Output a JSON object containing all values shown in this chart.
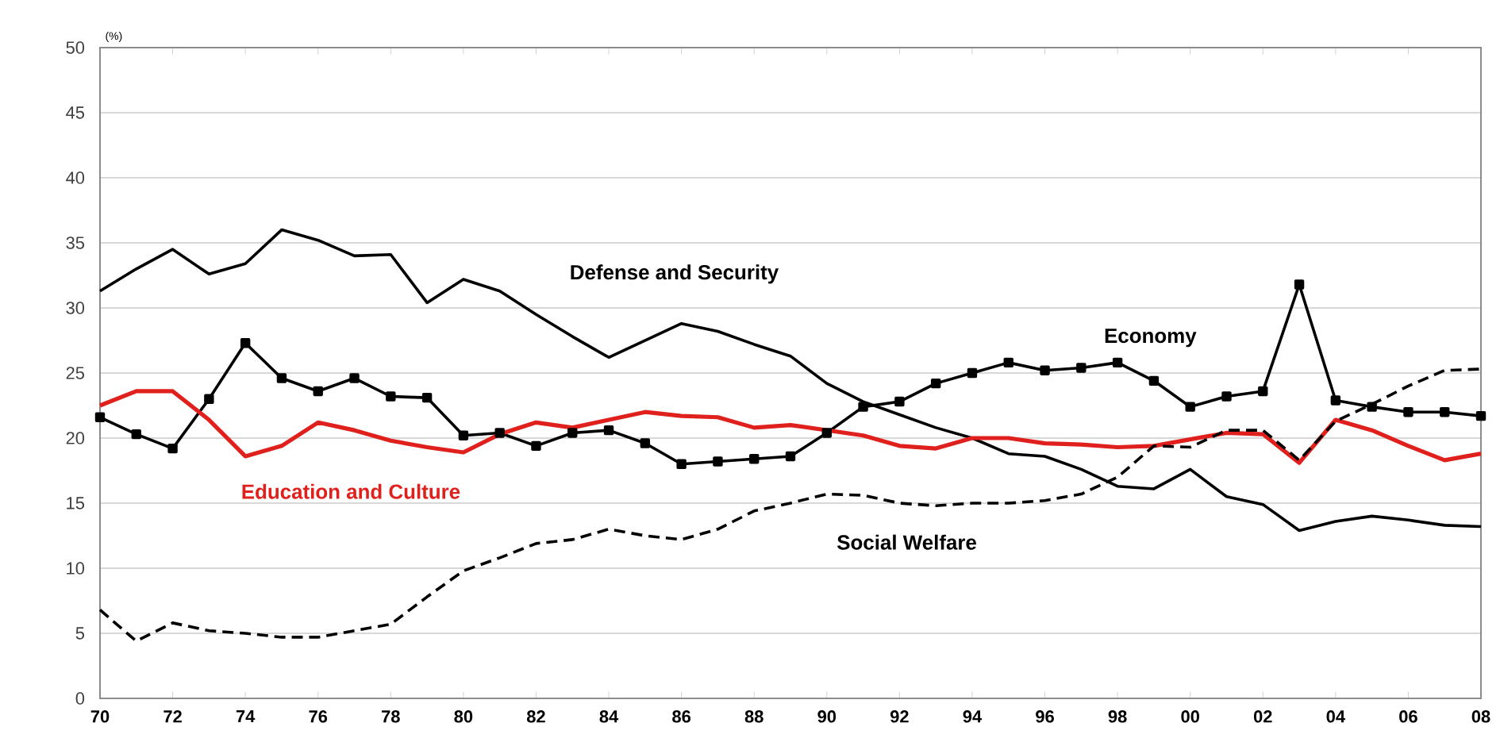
{
  "chart_data": {
    "type": "line",
    "ylabel": "(%)",
    "x": [
      1970,
      1971,
      1972,
      1973,
      1974,
      1975,
      1976,
      1977,
      1978,
      1979,
      1980,
      1981,
      1982,
      1983,
      1984,
      1985,
      1986,
      1987,
      1988,
      1989,
      1990,
      1991,
      1992,
      1993,
      1994,
      1995,
      1996,
      1997,
      1998,
      1999,
      2000,
      2001,
      2002,
      2003,
      2004,
      2005,
      2006,
      2007,
      2008
    ],
    "series": [
      {
        "name": "Defense and Security",
        "color": "#000000",
        "marker": "none",
        "line_style": "solid",
        "values": [
          31.3,
          33,
          34.5,
          32.6,
          33.4,
          36,
          35.2,
          34,
          34.1,
          30.4,
          32.2,
          31.3,
          29.5,
          27.8,
          26.2,
          27.5,
          28.8,
          28.2,
          27.2,
          26.3,
          24.2,
          22.8,
          21.8,
          20.8,
          20,
          18.8,
          18.6,
          17.6,
          16.3,
          16.1,
          17.6,
          15.5,
          14.9,
          12.9,
          13.6,
          14,
          13.7,
          13.3,
          13.2
        ]
      },
      {
        "name": "Economy",
        "color": "#000000",
        "marker": "square",
        "line_style": "solid",
        "values": [
          21.6,
          20.3,
          19.2,
          23,
          27.3,
          24.6,
          23.6,
          24.6,
          23.2,
          23.1,
          20.2,
          20.4,
          19.4,
          20.4,
          20.6,
          19.6,
          18,
          18.2,
          18.4,
          18.6,
          20.4,
          22.4,
          22.8,
          24.2,
          25,
          25.8,
          25.2,
          25.4,
          25.8,
          24.4,
          22.4,
          23.2,
          23.6,
          31.8,
          22.9,
          22.4,
          22,
          22,
          21.7
        ]
      },
      {
        "name": "Education and Culture",
        "color": "#e0201c",
        "marker": "none",
        "line_style": "solid",
        "values": [
          22.5,
          23.6,
          23.6,
          21.4,
          18.6,
          19.4,
          21.2,
          20.6,
          19.8,
          19.3,
          18.9,
          20.3,
          21.2,
          20.8,
          21.4,
          22,
          21.7,
          21.6,
          20.8,
          21,
          20.6,
          20.2,
          19.4,
          19.2,
          20,
          20,
          19.6,
          19.5,
          19.3,
          19.4,
          19.9,
          20.4,
          20.3,
          18.1,
          21.4,
          20.6,
          19.4,
          18.3,
          18.8
        ]
      },
      {
        "name": "Social Welfare",
        "color": "#000000",
        "marker": "none",
        "line_style": "dashed",
        "values": [
          6.8,
          4.4,
          5.8,
          5.2,
          5,
          4.7,
          4.7,
          5.2,
          5.7,
          7.8,
          9.8,
          10.8,
          11.9,
          12.2,
          13,
          12.5,
          12.2,
          13,
          14.4,
          15,
          15.7,
          15.6,
          15,
          14.8,
          15,
          15,
          15.2,
          15.7,
          17,
          19.4,
          19.3,
          20.6,
          20.6,
          18.3,
          21.3,
          22.6,
          24,
          25.2,
          25.3
        ]
      }
    ],
    "xlim": [
      1970,
      2008
    ],
    "xticks": [
      {
        "value": 1970,
        "label": "70"
      },
      {
        "value": 1972,
        "label": "72"
      },
      {
        "value": 1974,
        "label": "74"
      },
      {
        "value": 1976,
        "label": "76"
      },
      {
        "value": 1978,
        "label": "78"
      },
      {
        "value": 1980,
        "label": "80"
      },
      {
        "value": 1982,
        "label": "82"
      },
      {
        "value": 1984,
        "label": "84"
      },
      {
        "value": 1986,
        "label": "86"
      },
      {
        "value": 1988,
        "label": "88"
      },
      {
        "value": 1990,
        "label": "90"
      },
      {
        "value": 1992,
        "label": "92"
      },
      {
        "value": 1994,
        "label": "94"
      },
      {
        "value": 1996,
        "label": "96"
      },
      {
        "value": 1998,
        "label": "98"
      },
      {
        "value": 2000,
        "label": "00"
      },
      {
        "value": 2002,
        "label": "02"
      },
      {
        "value": 2004,
        "label": "04"
      },
      {
        "value": 2006,
        "label": "06"
      },
      {
        "value": 2008,
        "label": "08"
      }
    ],
    "ylim": [
      0,
      50
    ],
    "yticks": [
      0,
      5,
      10,
      15,
      20,
      25,
      30,
      35,
      40,
      45,
      50
    ],
    "grid": "y",
    "legend": false
  }
}
